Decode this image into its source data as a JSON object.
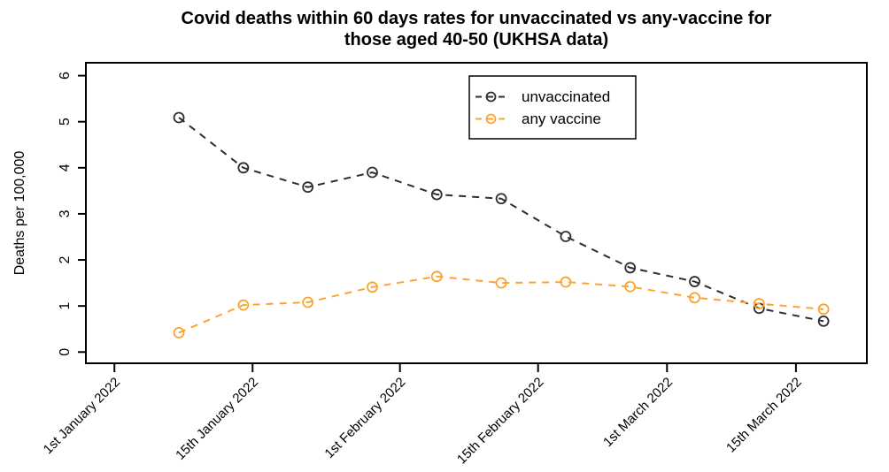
{
  "page": {
    "background": "#ffffff"
  },
  "chart_data": {
    "type": "line",
    "title": "Covid deaths within 60 days rates for unvaccinated vs any-vaccine for\nthose aged 40-50 (UKHSA data)",
    "xlabel": "",
    "ylabel": "Deaths per 100,000",
    "y_ticks": [
      0,
      1,
      2,
      3,
      4,
      5,
      6
    ],
    "ylim": [
      0,
      6
    ],
    "grid": false,
    "x_tick_labels": [
      "1st January 2022",
      "15th January 2022",
      "1st February 2022",
      "15th February 2022",
      "1st March 2022",
      "15th March 2022"
    ],
    "x_tick_days": [
      0,
      15,
      31,
      46,
      60,
      74
    ],
    "x_days": [
      7,
      14,
      21,
      28,
      35,
      42,
      49,
      56,
      63,
      70,
      77
    ],
    "series": [
      {
        "name": "unvaccinated",
        "color": "#2e2e2e",
        "marker": "open-circle",
        "linestyle": "dashed",
        "values": [
          5.09,
          4.0,
          3.58,
          3.9,
          3.42,
          3.33,
          2.51,
          1.83,
          1.53,
          0.95,
          0.67
        ]
      },
      {
        "name": "any vaccine",
        "color": "#FCA430",
        "marker": "open-circle",
        "linestyle": "dashed",
        "values": [
          0.42,
          1.02,
          1.08,
          1.41,
          1.64,
          1.5,
          1.52,
          1.42,
          1.18,
          1.05,
          0.93
        ]
      }
    ],
    "legend": {
      "position": "top-center",
      "entries": [
        "unvaccinated",
        "any vaccine"
      ]
    },
    "axis_color": "#000000"
  }
}
